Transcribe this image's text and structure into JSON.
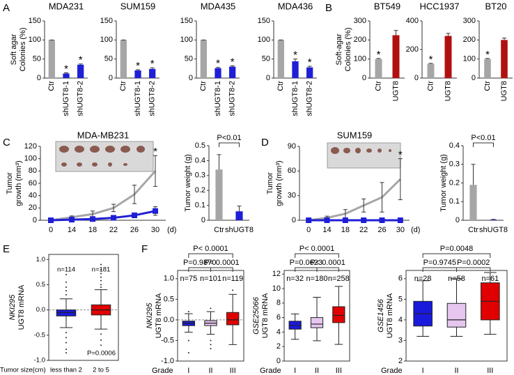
{
  "chart_data": [
    {
      "type": "bar",
      "panel": "A",
      "title": "MDA231",
      "ylabel": [
        "Soft agar",
        "Colonies (%)"
      ],
      "categories": [
        "Ctr",
        "shUGT8-1",
        "shUGT8-2"
      ],
      "category_colors": [
        "#000000",
        "#1f1fd6",
        "#1f1fd6"
      ],
      "values": [
        100,
        12,
        35
      ],
      "errors": [
        0,
        2,
        2
      ],
      "colors": [
        "#a6a6a6",
        "#1f1fd6",
        "#1f1fd6"
      ],
      "ylim": [
        0,
        150
      ],
      "yticks": [
        0,
        50,
        100,
        150
      ],
      "annotations": [
        {
          "text": "*",
          "category": "shUGT8-1"
        },
        {
          "text": "*",
          "category": "shUGT8-2"
        }
      ]
    },
    {
      "type": "bar",
      "title": "SUM159",
      "categories": [
        "Ctr",
        "shUGT8-1",
        "shUGT8-2"
      ],
      "category_colors": [
        "#000000",
        "#1f1fd6",
        "#1f1fd6"
      ],
      "values": [
        100,
        20,
        24
      ],
      "errors": [
        0,
        2,
        3
      ],
      "colors": [
        "#a6a6a6",
        "#1f1fd6",
        "#1f1fd6"
      ],
      "ylim": [
        0,
        150
      ],
      "yticks": [
        0,
        50,
        100,
        150
      ],
      "annotations": [
        {
          "text": "*",
          "category": "shUGT8-1"
        },
        {
          "text": "*",
          "category": "shUGT8-2"
        }
      ]
    },
    {
      "type": "bar",
      "title": "MDA435",
      "categories": [
        "Ctr",
        "shUGT8-1",
        "shUGT8-2"
      ],
      "category_colors": [
        "#000000",
        "#1f1fd6",
        "#1f1fd6"
      ],
      "values": [
        100,
        26,
        30
      ],
      "errors": [
        0,
        2,
        2
      ],
      "colors": [
        "#a6a6a6",
        "#1f1fd6",
        "#1f1fd6"
      ],
      "ylim": [
        0,
        150
      ],
      "yticks": [
        0,
        50,
        100,
        150
      ],
      "annotations": [
        {
          "text": "*",
          "category": "shUGT8-1"
        },
        {
          "text": "*",
          "category": "shUGT8-2"
        }
      ]
    },
    {
      "type": "bar",
      "title": "MDA436",
      "categories": [
        "Ctr",
        "shUGT8-1",
        "shUGT8-2"
      ],
      "category_colors": [
        "#000000",
        "#1f1fd6",
        "#1f1fd6"
      ],
      "values": [
        100,
        44,
        28
      ],
      "errors": [
        0,
        6,
        3
      ],
      "colors": [
        "#a6a6a6",
        "#1f1fd6",
        "#1f1fd6"
      ],
      "ylim": [
        0,
        150
      ],
      "yticks": [
        0,
        50,
        100,
        150
      ],
      "annotations": [
        {
          "text": "*",
          "category": "shUGT8-1"
        },
        {
          "text": "*",
          "category": "shUGT8-2"
        }
      ]
    },
    {
      "type": "bar",
      "panel": "B",
      "title": "BT549",
      "ylabel": [
        "Soft-agar",
        "Colonies (%)"
      ],
      "categories": [
        "Ctr",
        "UGT8"
      ],
      "category_colors": [
        "#000000",
        "#b01010"
      ],
      "values": [
        100,
        225
      ],
      "errors": [
        3,
        25
      ],
      "colors": [
        "#a6a6a6",
        "#b01010"
      ],
      "ylim": [
        0,
        300
      ],
      "yticks": [
        0,
        100,
        200,
        300
      ],
      "annotations": [
        {
          "text": "*",
          "category": "Ctr"
        }
      ]
    },
    {
      "type": "bar",
      "title": "HCC1937",
      "categories": [
        "Ctr",
        "UGT8"
      ],
      "category_colors": [
        "#000000",
        "#b01010"
      ],
      "values": [
        100,
        295
      ],
      "errors": [
        3,
        18
      ],
      "colors": [
        "#a6a6a6",
        "#b01010"
      ],
      "ylim": [
        0,
        400
      ],
      "yticks": [
        0,
        200,
        400
      ],
      "annotations": [
        {
          "text": "*",
          "category": "Ctr"
        }
      ]
    },
    {
      "type": "bar",
      "title": "BT20",
      "categories": [
        "Ctr",
        "UGT8"
      ],
      "category_colors": [
        "#000000",
        "#b01010"
      ],
      "values": [
        100,
        200
      ],
      "errors": [
        3,
        10
      ],
      "colors": [
        "#a6a6a6",
        "#b01010"
      ],
      "ylim": [
        0,
        300
      ],
      "yticks": [
        0,
        100,
        200,
        300
      ],
      "annotations": [
        {
          "text": "*",
          "category": "Ctr"
        }
      ]
    },
    {
      "type": "line",
      "panel": "C",
      "title": "MDA-MB231",
      "ylabel": [
        "Tumor",
        "growth (mm³)"
      ],
      "categories": [
        "0",
        "14",
        "18",
        "22",
        "26",
        "30"
      ],
      "xlabel": "(d)",
      "series": [
        {
          "color": "#a6a6a6",
          "marker": "none",
          "values": [
            0,
            5,
            10,
            20,
            42,
            80
          ],
          "errors": [
            0,
            2,
            5,
            6,
            15,
            25
          ]
        },
        {
          "color": "#1f1fd6",
          "marker": "square",
          "values": [
            0,
            1,
            2,
            4,
            8,
            15
          ],
          "errors": [
            0,
            0,
            1,
            2,
            4,
            7
          ]
        }
      ],
      "ylim": [
        0,
        120
      ],
      "yticks": [
        0,
        20,
        40,
        60,
        80,
        100,
        120
      ],
      "annotations": [
        {
          "text": "*",
          "category": "30"
        }
      ]
    },
    {
      "type": "bar",
      "ylabel": [
        "Tumor weight (g)"
      ],
      "categories": [
        "Ctr",
        "shUGT8"
      ],
      "category_colors": [
        "#000000",
        "#1f1fd6"
      ],
      "values": [
        0.34,
        0.06
      ],
      "errors": [
        0.1,
        0.035
      ],
      "colors": [
        "#a6a6a6",
        "#1f1fd6"
      ],
      "ylim": [
        0,
        0.5
      ],
      "yticks": [
        0,
        0.1,
        0.2,
        0.3,
        0.4,
        0.5
      ],
      "annotations": [
        {
          "text": "P<0.01",
          "from": "Ctr",
          "to": "shUGT8"
        }
      ]
    },
    {
      "type": "line",
      "panel": "D",
      "title": "SUM159",
      "ylabel": [
        "Tumor",
        "growth (mm³)"
      ],
      "categories": [
        "0",
        "14",
        "18",
        "22",
        "26",
        "30"
      ],
      "xlabel": "(d)",
      "series": [
        {
          "color": "#a6a6a6",
          "marker": "none",
          "values": [
            0,
            3,
            8,
            18,
            28,
            50
          ],
          "errors": [
            0,
            2,
            5,
            8,
            18,
            25
          ]
        },
        {
          "color": "#1f1fd6",
          "marker": "square",
          "values": [
            0,
            0,
            0,
            0,
            0,
            0
          ],
          "errors": [
            0,
            0,
            0,
            0,
            0,
            0
          ]
        }
      ],
      "ylim": [
        0,
        90
      ],
      "yticks": [
        0,
        30,
        60,
        90
      ],
      "annotations": [
        {
          "text": "*",
          "category": "30"
        }
      ]
    },
    {
      "type": "bar",
      "ylabel": [
        "Tumor weight (g)"
      ],
      "categories": [
        "Ctr",
        "shUGT8"
      ],
      "category_colors": [
        "#000000",
        "#1f1fd6"
      ],
      "values": [
        0.19,
        0.003
      ],
      "errors": [
        0.11,
        0.002
      ],
      "colors": [
        "#a6a6a6",
        "#1f1fd6"
      ],
      "ylim": [
        0,
        0.4
      ],
      "yticks": [
        0,
        0.1,
        0.2,
        0.3,
        0.4
      ],
      "annotations": [
        {
          "text": "P<0.01",
          "from": "Ctr",
          "to": "shUGT8"
        }
      ]
    },
    {
      "type": "box",
      "panel": "E",
      "dataset": "NKI295",
      "ylabel": [
        "UGT8 mRNA"
      ],
      "xlabel": "Tumor size(cm)",
      "categories": [
        "less than 2",
        "2 to 5"
      ],
      "n_labels": [
        "n=114",
        "n=181"
      ],
      "colors": [
        "#1a1adb",
        "#e00000"
      ],
      "boxes": [
        {
          "whislo": -0.35,
          "q1": -0.12,
          "med": -0.05,
          "q3": 0.0,
          "whishi": 0.22,
          "fliers": [
            0.7,
            0.55,
            0.45,
            0.38,
            0.3,
            -0.45,
            -0.55,
            -0.65,
            -0.78,
            -0.85
          ]
        },
        {
          "whislo": -0.38,
          "q1": -0.1,
          "med": 0.0,
          "q3": 0.1,
          "whishi": 0.4,
          "fliers": [
            0.9,
            0.8,
            0.72,
            0.65,
            0.58,
            0.5,
            0.45,
            -0.48,
            -0.6,
            -0.7
          ]
        }
      ],
      "ylim": [
        -1,
        1.1
      ],
      "yticks": [
        {
          "value": -1,
          "label": "-1.0"
        },
        {
          "value": -0.5,
          "label": "-0.5"
        },
        {
          "value": 0,
          "label": "0.0"
        },
        {
          "value": 0.5,
          "label": "0.5"
        },
        {
          "value": 1,
          "label": "1.0"
        }
      ],
      "hline": 0,
      "annotations": [
        {
          "text": "P=0.0006"
        }
      ]
    },
    {
      "type": "box",
      "panel": "F",
      "dataset": "NKI295",
      "ylabel": [
        "UGT8 mRNA"
      ],
      "xlabel": "Grade",
      "categories": [
        "I",
        "II",
        "III"
      ],
      "n_labels": [
        "n=75",
        "n=101",
        "n=119"
      ],
      "colors": [
        "#1a1adb",
        "#e6c6ee",
        "#e00000"
      ],
      "boxes": [
        {
          "whislo": -0.3,
          "q1": -0.14,
          "med": -0.08,
          "q3": -0.03,
          "whishi": 0.15,
          "fliers": [
            0.2,
            -0.5,
            -0.8
          ]
        },
        {
          "whislo": -0.35,
          "q1": -0.14,
          "med": -0.08,
          "q3": -0.02,
          "whishi": 0.2,
          "fliers": [
            0.28,
            -0.5,
            -0.6,
            -0.7
          ]
        },
        {
          "whislo": -0.6,
          "q1": -0.12,
          "med": 0.0,
          "q3": 0.18,
          "whishi": 0.62,
          "fliers": [
            0.72
          ]
        }
      ],
      "ylim": [
        -1,
        1.2
      ],
      "yticks": [
        {
          "value": -1,
          "label": "-1.0"
        },
        {
          "value": -0.5,
          "label": "-0.5"
        },
        {
          "value": 0,
          "label": "0.0"
        },
        {
          "value": 0.5,
          "label": "0.5"
        },
        {
          "value": 1,
          "label": "1.0"
        }
      ],
      "hline": 0,
      "annotations": [
        {
          "text": "P=0.9870",
          "from": "I",
          "to": "II"
        },
        {
          "text": "P< 0.0001",
          "from": "II",
          "to": "III"
        },
        {
          "text": "P< 0.0001",
          "from": "I",
          "to": "III"
        }
      ]
    },
    {
      "type": "box",
      "dataset": "GSE25066",
      "ylabel": [
        "UGT8 mRNA"
      ],
      "xlabel": "Grade",
      "categories": [
        "I",
        "II",
        "III"
      ],
      "n_labels": [
        "n=32",
        "n=180",
        "n=258"
      ],
      "colors": [
        "#1a1adb",
        "#e6c6ee",
        "#e00000"
      ],
      "boxes": [
        {
          "whislo": 3.0,
          "q1": 4.4,
          "med": 4.9,
          "q3": 5.5,
          "whishi": 6.5
        },
        {
          "whislo": 2.8,
          "q1": 4.6,
          "med": 5.1,
          "q3": 6.0,
          "whishi": 8.8
        },
        {
          "whislo": 2.3,
          "q1": 5.3,
          "med": 6.3,
          "q3": 7.5,
          "whishi": 10.3
        }
      ],
      "ylim": [
        0,
        12.5
      ],
      "yticks": [
        0,
        2,
        4,
        6,
        8,
        10,
        12
      ],
      "annotations": [
        {
          "text": "P=0.0623",
          "from": "I",
          "to": "II"
        },
        {
          "text": "P< 0.0001",
          "from": "II",
          "to": "III"
        },
        {
          "text": "P< 0.0001",
          "from": "I",
          "to": "III"
        }
      ]
    },
    {
      "type": "box",
      "dataset": "GSE1456",
      "ylabel": [
        "UGT8 mRNA"
      ],
      "xlabel": "Grade",
      "categories": [
        "I",
        "II",
        "III"
      ],
      "n_labels": [
        "n=28",
        "n=58",
        "n=61"
      ],
      "colors": [
        "#1a1adb",
        "#e6c6ee",
        "#e00000"
      ],
      "boxes": [
        {
          "whislo": 3.2,
          "q1": 3.7,
          "med": 4.3,
          "q3": 4.9,
          "whishi": 5.9
        },
        {
          "whislo": 3.2,
          "q1": 3.65,
          "med": 4.0,
          "q3": 4.8,
          "whishi": 6.0
        },
        {
          "whislo": 3.3,
          "q1": 4.0,
          "med": 4.9,
          "q3": 5.8,
          "whishi": 6.3
        }
      ],
      "ylim": [
        2,
        6.4
      ],
      "yticks": [
        2,
        3,
        4,
        5,
        6
      ],
      "annotations": [
        {
          "text": "P=0.9745",
          "from": "I",
          "to": "II"
        },
        {
          "text": "P=0.0002",
          "from": "II",
          "to": "III"
        },
        {
          "text": "P=0.0048",
          "from": "I",
          "to": "III"
        }
      ]
    }
  ]
}
